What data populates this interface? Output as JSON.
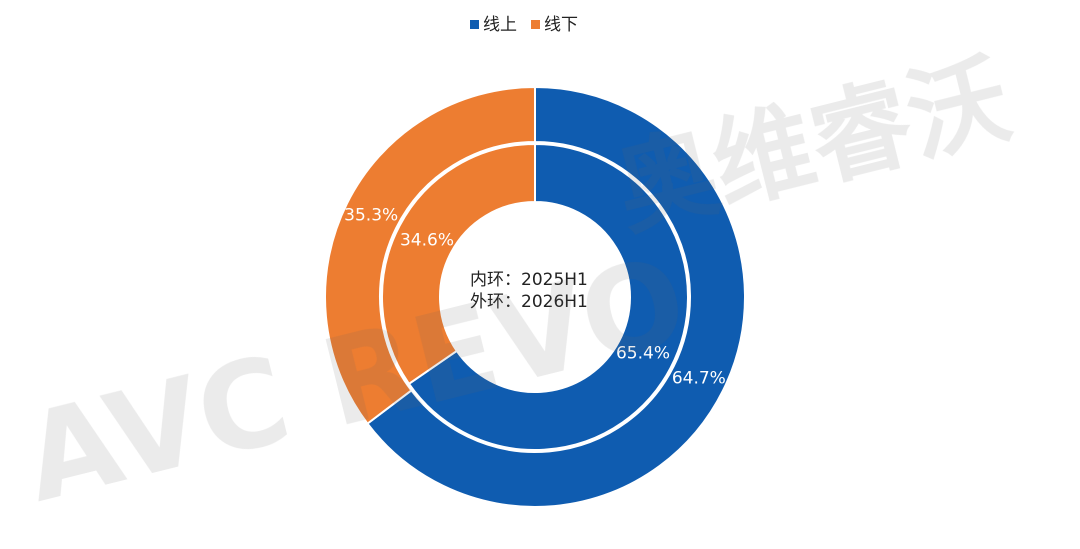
{
  "chart_data": {
    "type": "donut",
    "categories": [
      "线上",
      "线下"
    ],
    "colors": [
      "#0f5cb0",
      "#ed7d31"
    ],
    "legend": "top",
    "rings": [
      {
        "label": "内环：2025H1",
        "values": [
          65.4,
          34.6
        ],
        "value_labels": [
          "65.4%",
          "34.6%"
        ]
      },
      {
        "label": "外环：2026H1",
        "values": [
          64.7,
          35.3
        ],
        "value_labels": [
          "64.7%",
          "35.3%"
        ]
      }
    ]
  },
  "watermark": [
    "AVC REVO",
    "奥维睿沃"
  ]
}
